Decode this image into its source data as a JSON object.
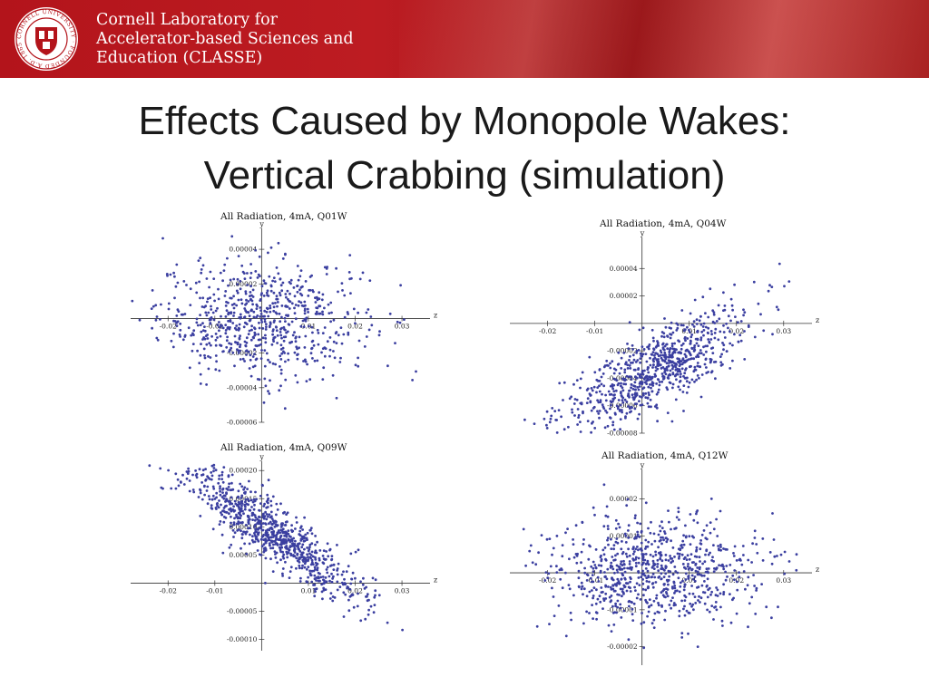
{
  "header": {
    "lab_name_lines": [
      "Cornell Laboratory for",
      "Accelerator-based Sciences and",
      "Education (CLASSE)"
    ],
    "seal_text": "CORNELL UNIVERSITY · FOUNDED A.D. 1865",
    "brand_color": "#b3141b"
  },
  "slide": {
    "title_lines": [
      "Effects Caused by Monopole Wakes:",
      "Vertical Crabbing (simulation)"
    ]
  },
  "chart_data": [
    {
      "type": "scatter",
      "title": "All Radiation, 4mA, Q01W",
      "xlabel": "z",
      "ylabel": "y",
      "xlim": [
        -0.028,
        0.036
      ],
      "ylim": [
        -6e-05,
        5e-05
      ],
      "x_ticks": [
        -0.02,
        -0.01,
        0.01,
        0.02,
        0.03
      ],
      "x_tick_labels": [
        "-0.02",
        "-0.01",
        "0.01",
        "0.02",
        "0.03"
      ],
      "y_ticks": [
        4e-05,
        2e-05,
        -2e-05,
        -4e-05,
        -6e-05
      ],
      "y_tick_labels": [
        "0.00004",
        "0.00002",
        "-0.00002",
        "-0.00004",
        "-0.00006"
      ],
      "point_color": "#3b3fa0",
      "distribution": {
        "points": 700,
        "x_mean": 0.0,
        "x_std": 0.011,
        "y_center": 0.0,
        "y_slope": 0.0,
        "y_std": 1.7e-05
      }
    },
    {
      "type": "scatter",
      "title": "All Radiation, 4mA, Q04W",
      "xlabel": "z",
      "ylabel": "y",
      "xlim": [
        -0.028,
        0.036
      ],
      "ylim": [
        -8e-05,
        6e-05
      ],
      "x_ticks": [
        -0.02,
        -0.01,
        0.01,
        0.02,
        0.03
      ],
      "x_tick_labels": [
        "-0.02",
        "-0.01",
        "0.01",
        "0.02",
        "0.03"
      ],
      "y_ticks": [
        4e-05,
        2e-05,
        -2e-05,
        -4e-05,
        -6e-05,
        -8e-05
      ],
      "y_tick_labels": [
        "0.00004",
        "0.00002",
        "-0.00002",
        "-0.00004",
        "-0.00006",
        "-0.00008"
      ],
      "point_color": "#3b3fa0",
      "distribution": {
        "points": 800,
        "x_mean": 0.002,
        "x_std": 0.01,
        "y_center": -3.5e-05,
        "y_slope": 0.0018,
        "y_abs_coeff": 0.0,
        "y_std": 1.4e-05
      }
    },
    {
      "type": "scatter",
      "title": "All Radiation, 4mA, Q09W",
      "xlabel": "z",
      "ylabel": "y",
      "xlim": [
        -0.028,
        0.036
      ],
      "ylim": [
        -0.00012,
        0.00021
      ],
      "x_ticks": [
        -0.02,
        -0.01,
        0.01,
        0.02,
        0.03
      ],
      "x_tick_labels": [
        "-0.02",
        "-0.01",
        "0.01",
        "0.02",
        "0.03"
      ],
      "y_ticks": [
        0.0002,
        0.00015,
        0.0001,
        5e-05,
        -5e-05,
        -0.0001
      ],
      "y_tick_labels": [
        "0.00020",
        "0.00015",
        "0.00010",
        "0.00005",
        "-0.00005",
        "-0.00010"
      ],
      "point_color": "#3b3fa0",
      "distribution": {
        "points": 850,
        "x_mean": 0.002,
        "x_std": 0.01,
        "y_center": 9e-05,
        "y_slope": -0.0055,
        "y_std": 2.8e-05
      }
    },
    {
      "type": "scatter",
      "title": "All Radiation, 4mA, Q12W",
      "xlabel": "z",
      "ylabel": "y",
      "xlim": [
        -0.028,
        0.036
      ],
      "ylim": [
        -2.5e-05,
        2.7e-05
      ],
      "x_ticks": [
        -0.02,
        -0.01,
        0.01,
        0.02,
        0.03
      ],
      "x_tick_labels": [
        "-0.02",
        "-0.01",
        "0.01",
        "0.02",
        "0.03"
      ],
      "y_ticks": [
        2e-05,
        1e-05,
        -1e-05,
        -2e-05
      ],
      "y_tick_labels": [
        "0.00002",
        "0.00001",
        "-0.00001",
        "-0.00002"
      ],
      "point_color": "#3b3fa0",
      "distribution": {
        "points": 800,
        "x_mean": 0.002,
        "x_std": 0.011,
        "y_center": 0.0,
        "y_slope": 0.0,
        "y_std": 7.5e-06
      }
    }
  ]
}
